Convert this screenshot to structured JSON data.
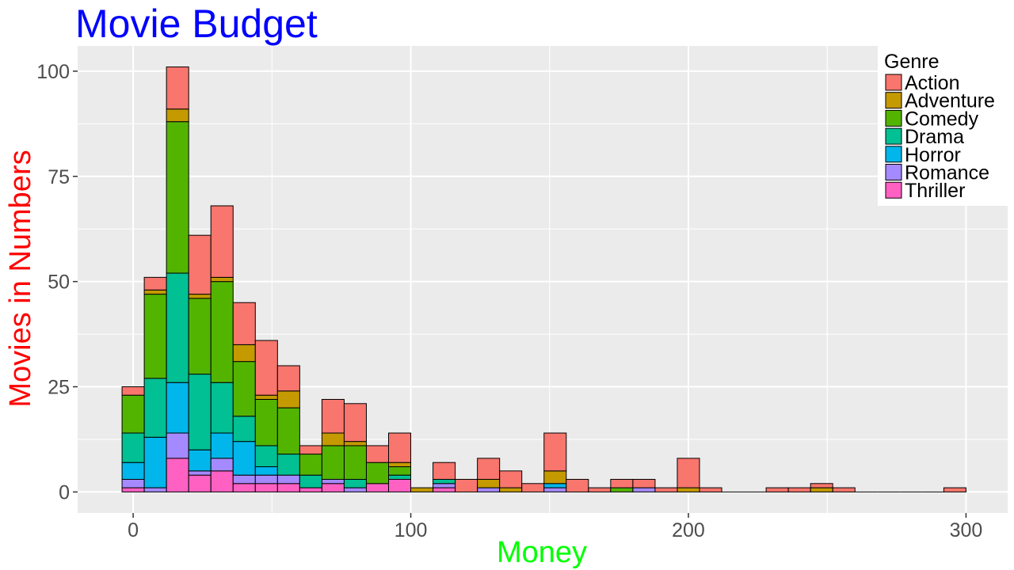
{
  "chart_data": {
    "type": "bar",
    "stacked": true,
    "title": "Movie Budget",
    "xlabel": "Money",
    "ylabel": "Movies in Numbers",
    "xlim": [
      -20,
      315
    ],
    "ylim": [
      -5,
      106
    ],
    "xticks": [
      0,
      100,
      200,
      300
    ],
    "yticks": [
      0,
      25,
      50,
      75,
      100
    ],
    "bin_width": 8,
    "grid": true,
    "legend_title": "Genre",
    "legend_position": "top-right",
    "colors": {
      "title": "#0000ff",
      "xlabel": "#00ff00",
      "ylabel": "#ff0000",
      "panel": "#ebebeb",
      "grid": "#ffffff",
      "tick_text": "#4d4d4d"
    },
    "bin_centers": [
      0,
      8,
      16,
      24,
      32,
      40,
      48,
      56,
      64,
      72,
      80,
      88,
      96,
      104,
      112,
      120,
      128,
      136,
      144,
      152,
      160,
      168,
      176,
      184,
      192,
      200,
      208,
      216,
      224,
      232,
      240,
      248,
      256,
      264,
      272,
      280,
      288,
      296
    ],
    "series": [
      {
        "name": "Thriller",
        "color": "#ff61c3",
        "values": [
          1,
          0,
          8,
          4,
          5,
          2,
          2,
          2,
          1,
          2,
          0,
          2,
          3,
          0,
          1,
          0,
          0,
          0,
          0,
          0,
          0,
          0,
          0,
          0,
          0,
          0,
          0,
          0,
          0,
          0,
          0,
          0,
          0,
          0,
          0,
          0,
          0,
          0
        ]
      },
      {
        "name": "Romance",
        "color": "#a58aff",
        "values": [
          2,
          1,
          6,
          1,
          3,
          2,
          2,
          2,
          0,
          1,
          1,
          0,
          0,
          0,
          1,
          0,
          1,
          0,
          0,
          1,
          0,
          0,
          0,
          1,
          0,
          0,
          0,
          0,
          0,
          0,
          0,
          0,
          0,
          0,
          0,
          0,
          0,
          0
        ]
      },
      {
        "name": "Horror",
        "color": "#00b6eb",
        "values": [
          4,
          12,
          12,
          5,
          6,
          8,
          2,
          0,
          0,
          0,
          0,
          0,
          0,
          0,
          0,
          0,
          0,
          0,
          0,
          1,
          0,
          0,
          0,
          0,
          0,
          0,
          0,
          0,
          0,
          0,
          0,
          0,
          0,
          0,
          0,
          0,
          0,
          0
        ]
      },
      {
        "name": "Drama",
        "color": "#00c094",
        "values": [
          7,
          14,
          26,
          18,
          12,
          6,
          5,
          5,
          3,
          0,
          2,
          0,
          1,
          0,
          1,
          0,
          0,
          0,
          0,
          0,
          0,
          0,
          0,
          0,
          0,
          0,
          0,
          0,
          0,
          0,
          0,
          0,
          0,
          0,
          0,
          0,
          0,
          0
        ]
      },
      {
        "name": "Comedy",
        "color": "#53b400",
        "values": [
          9,
          20,
          36,
          18,
          24,
          13,
          11,
          11,
          5,
          8,
          8,
          5,
          2,
          0,
          0,
          0,
          0,
          0,
          0,
          0,
          0,
          0,
          1,
          0,
          0,
          0,
          0,
          0,
          0,
          0,
          0,
          0,
          0,
          0,
          0,
          0,
          0,
          0
        ]
      },
      {
        "name": "Adventure",
        "color": "#c49a00",
        "values": [
          0,
          1,
          3,
          1,
          1,
          4,
          1,
          4,
          0,
          3,
          1,
          0,
          1,
          1,
          0,
          0,
          2,
          1,
          0,
          3,
          0,
          0,
          0,
          0,
          0,
          1,
          0,
          0,
          0,
          0,
          0,
          1,
          0,
          0,
          0,
          0,
          0,
          0
        ]
      },
      {
        "name": "Action",
        "color": "#f8766d",
        "values": [
          2,
          3,
          10,
          14,
          17,
          10,
          13,
          6,
          2,
          8,
          9,
          4,
          7,
          0,
          4,
          3,
          5,
          4,
          2,
          9,
          3,
          1,
          2,
          2,
          1,
          7,
          1,
          0,
          0,
          1,
          1,
          1,
          1,
          0,
          0,
          0,
          0,
          1
        ]
      }
    ],
    "legend_order": [
      "Action",
      "Adventure",
      "Comedy",
      "Drama",
      "Horror",
      "Romance",
      "Thriller"
    ]
  }
}
